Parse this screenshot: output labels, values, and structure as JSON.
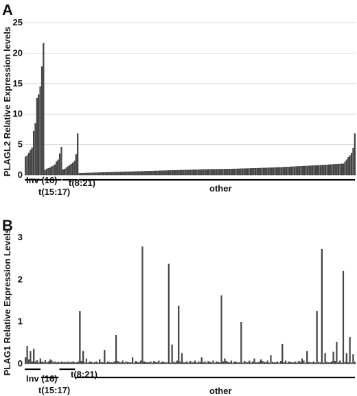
{
  "chart_data": [
    {
      "panel": "A",
      "type": "bar",
      "ylabel": "PLAGL2 Relative Expression levels",
      "ylim": [
        0,
        25
      ],
      "yticks": [
        "0",
        "5",
        "10",
        "15",
        "20",
        "25"
      ],
      "grid": true,
      "groups": [
        {
          "label": "Inv (16)",
          "values": [
            3.0,
            3.2,
            3.6,
            4.1,
            4.5,
            7.2,
            8.5,
            12.6,
            13.2,
            14.5,
            17.8,
            21.6
          ]
        },
        {
          "label": "t(15:17)",
          "values": [
            0.8,
            1.0,
            1.1,
            1.2,
            1.4,
            1.5,
            1.7,
            2.2,
            2.5,
            3.5,
            4.6
          ]
        },
        {
          "label": "t(8:21)",
          "values": [
            0.9,
            1.0,
            1.2,
            1.4,
            1.6,
            1.8,
            2.0,
            2.3,
            3.4,
            6.8
          ]
        },
        {
          "label": "other",
          "count": 170,
          "start": 0.3,
          "mid": 0.95,
          "end_main": 1.85,
          "tail": [
            2.2,
            2.5,
            2.9,
            3.2,
            3.6,
            4.4,
            6.8
          ]
        }
      ]
    },
    {
      "panel": "B",
      "type": "bar",
      "ylabel": "PLAG1 Relative Expression Levels",
      "ylim": [
        0,
        3
      ],
      "yticks": [
        "0",
        "1",
        "2",
        "3"
      ],
      "grid": false,
      "groups": [
        {
          "label": "Inv (16)",
          "values": [
            0.15,
            0.42,
            0.1,
            0.3,
            0.05,
            0.35,
            0.05,
            0.08,
            0.03,
            0.12
          ]
        },
        {
          "label": "t(15:17)",
          "values": [
            0.05,
            0.03,
            0.08,
            0.03,
            0.05,
            0.1,
            0.07,
            0.03,
            0.05,
            0.03,
            0.04
          ]
        },
        {
          "label": "t(8:21)",
          "values": [
            0.03,
            0.05,
            0.03,
            0.04,
            0.03,
            0.05,
            0.03,
            0.04,
            0.05,
            0.03
          ]
        },
        {
          "label": "other",
          "count": 170,
          "base_pattern": [
            0.03,
            0.05,
            0.02,
            0.06,
            0.04,
            0.03,
            0.07,
            0.02,
            0.05,
            0.04,
            0.03
          ],
          "spikes": [
            {
              "i": 2,
              "v": 1.25
            },
            {
              "i": 4,
              "v": 0.3
            },
            {
              "i": 6,
              "v": 0.12
            },
            {
              "i": 14,
              "v": 0.1
            },
            {
              "i": 17,
              "v": 0.32
            },
            {
              "i": 24,
              "v": 0.68
            },
            {
              "i": 34,
              "v": 0.15
            },
            {
              "i": 40,
              "v": 2.78
            },
            {
              "i": 56,
              "v": 2.37
            },
            {
              "i": 58,
              "v": 0.45
            },
            {
              "i": 62,
              "v": 1.37
            },
            {
              "i": 64,
              "v": 0.25
            },
            {
              "i": 76,
              "v": 0.15
            },
            {
              "i": 88,
              "v": 1.62
            },
            {
              "i": 90,
              "v": 0.12
            },
            {
              "i": 100,
              "v": 0.99
            },
            {
              "i": 108,
              "v": 0.12
            },
            {
              "i": 112,
              "v": 0.1
            },
            {
              "i": 118,
              "v": 0.2
            },
            {
              "i": 125,
              "v": 0.47
            },
            {
              "i": 137,
              "v": 0.12
            },
            {
              "i": 140,
              "v": 0.3
            },
            {
              "i": 146,
              "v": 1.25
            },
            {
              "i": 149,
              "v": 2.72
            },
            {
              "i": 151,
              "v": 0.25
            },
            {
              "i": 156,
              "v": 0.28
            },
            {
              "i": 158,
              "v": 0.52
            },
            {
              "i": 162,
              "v": 2.2
            },
            {
              "i": 164,
              "v": 0.25
            },
            {
              "i": 166,
              "v": 0.63
            },
            {
              "i": 168,
              "v": 0.22
            }
          ]
        }
      ]
    }
  ]
}
